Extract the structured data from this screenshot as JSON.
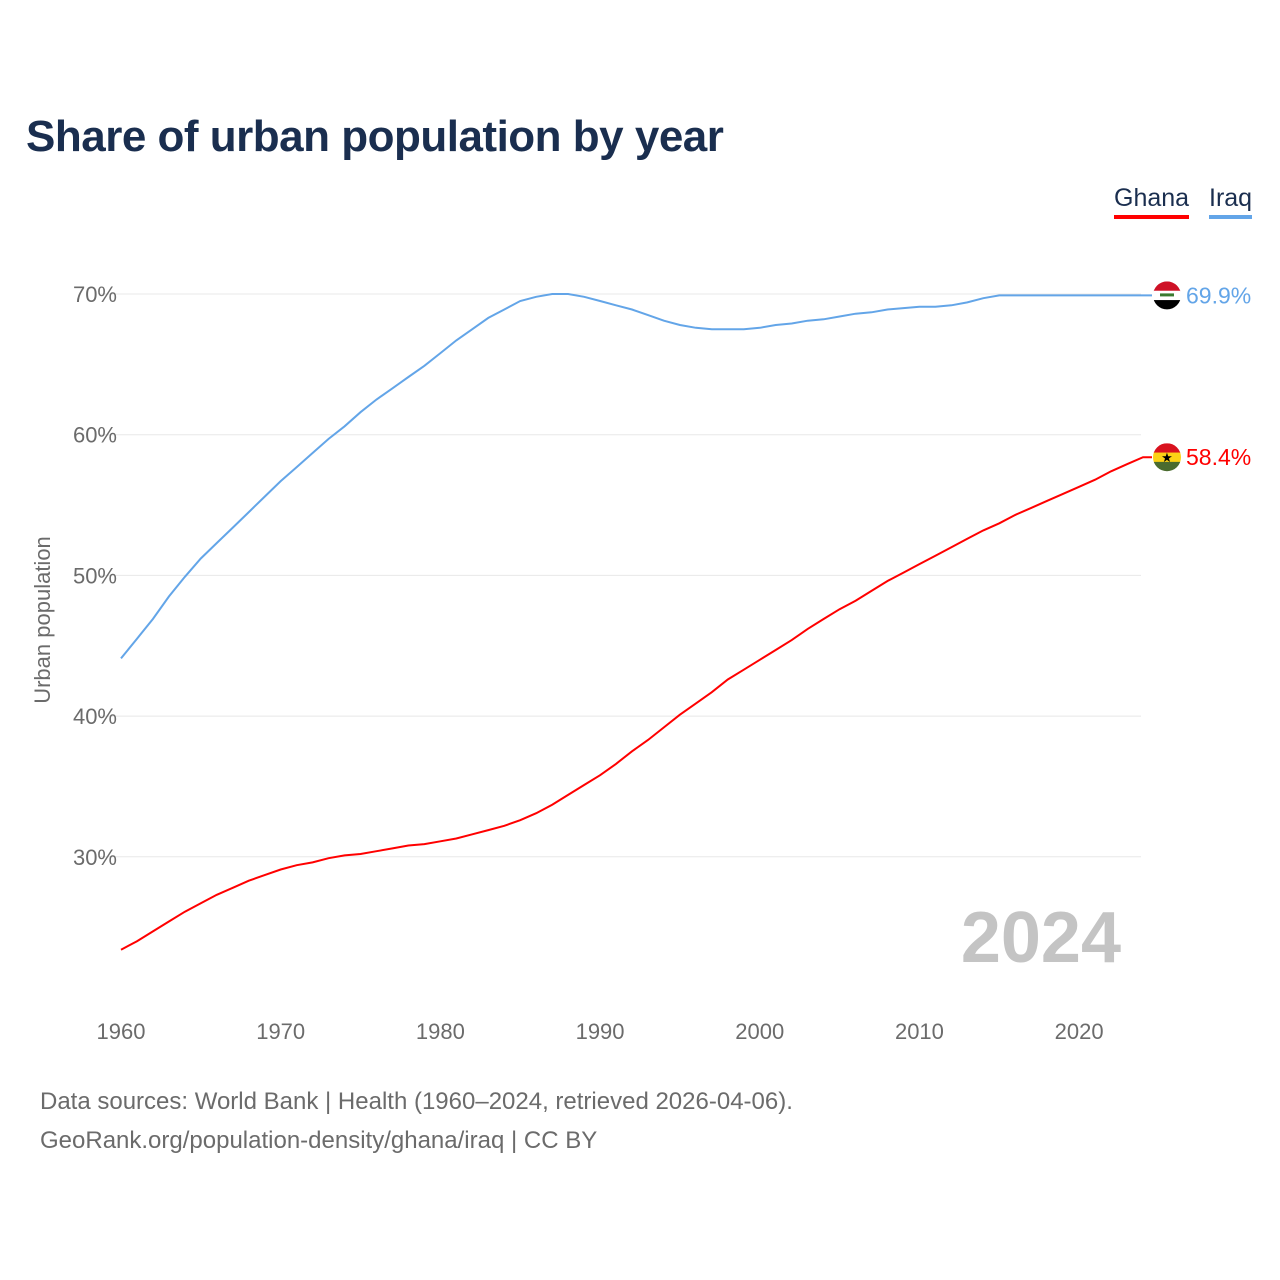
{
  "chart_data": {
    "type": "line",
    "title": "Share of urban population by year",
    "xlabel": "",
    "ylabel": "Urban population",
    "xlim": [
      1960,
      2024
    ],
    "ylim": [
      20,
      74
    ],
    "yticks": [
      30,
      40,
      50,
      60,
      70
    ],
    "ytick_labels": [
      "30%",
      "40%",
      "50%",
      "60%",
      "70%"
    ],
    "xticks": [
      1960,
      1970,
      1980,
      1990,
      2000,
      2010,
      2020
    ],
    "xtick_labels": [
      "1960",
      "1970",
      "1980",
      "1990",
      "2000",
      "2010",
      "2020"
    ],
    "grid": true,
    "legend_position": "top-right",
    "year_watermark": "2024",
    "x": [
      1960,
      1961,
      1962,
      1963,
      1964,
      1965,
      1966,
      1967,
      1968,
      1969,
      1970,
      1971,
      1972,
      1973,
      1974,
      1975,
      1976,
      1977,
      1978,
      1979,
      1980,
      1981,
      1982,
      1983,
      1984,
      1985,
      1986,
      1987,
      1988,
      1989,
      1990,
      1991,
      1992,
      1993,
      1994,
      1995,
      1996,
      1997,
      1998,
      1999,
      2000,
      2001,
      2002,
      2003,
      2004,
      2005,
      2006,
      2007,
      2008,
      2009,
      2010,
      2011,
      2012,
      2013,
      2014,
      2015,
      2016,
      2017,
      2018,
      2019,
      2020,
      2021,
      2022,
      2023,
      2024
    ],
    "series": [
      {
        "name": "Ghana",
        "color": "#ff0000",
        "end_label": "58.4%",
        "values": [
          23.4,
          24.0,
          24.7,
          25.4,
          26.1,
          26.7,
          27.3,
          27.8,
          28.3,
          28.7,
          29.1,
          29.4,
          29.6,
          29.9,
          30.1,
          30.2,
          30.4,
          30.6,
          30.8,
          30.9,
          31.1,
          31.3,
          31.6,
          31.9,
          32.2,
          32.6,
          33.1,
          33.7,
          34.4,
          35.1,
          35.8,
          36.6,
          37.5,
          38.3,
          39.2,
          40.1,
          40.9,
          41.7,
          42.6,
          43.3,
          44.0,
          44.7,
          45.4,
          46.2,
          46.9,
          47.6,
          48.2,
          48.9,
          49.6,
          50.2,
          50.8,
          51.4,
          52.0,
          52.6,
          53.2,
          53.7,
          54.3,
          54.8,
          55.3,
          55.8,
          56.3,
          56.8,
          57.4,
          57.9,
          58.4
        ]
      },
      {
        "name": "Iraq",
        "color": "#63a5e8",
        "end_label": "69.9%",
        "values": [
          44.1,
          45.5,
          46.9,
          48.5,
          49.9,
          51.2,
          52.3,
          53.4,
          54.5,
          55.6,
          56.7,
          57.7,
          58.7,
          59.7,
          60.6,
          61.6,
          62.5,
          63.3,
          64.1,
          64.9,
          65.8,
          66.7,
          67.5,
          68.3,
          68.9,
          69.5,
          69.8,
          70.0,
          70.0,
          69.8,
          69.5,
          69.2,
          68.9,
          68.5,
          68.1,
          67.8,
          67.6,
          67.5,
          67.5,
          67.5,
          67.6,
          67.8,
          67.9,
          68.1,
          68.2,
          68.4,
          68.6,
          68.7,
          68.9,
          69.0,
          69.1,
          69.1,
          69.2,
          69.4,
          69.7,
          69.9,
          69.9,
          69.9,
          69.9,
          69.9,
          69.9,
          69.9,
          69.9,
          69.9,
          69.9
        ]
      }
    ]
  },
  "footer": {
    "line1": "Data sources: World Bank | Health (1960–2024, retrieved 2026-04-06).",
    "line2": "GeoRank.org/population-density/ghana/iraq | CC BY"
  }
}
